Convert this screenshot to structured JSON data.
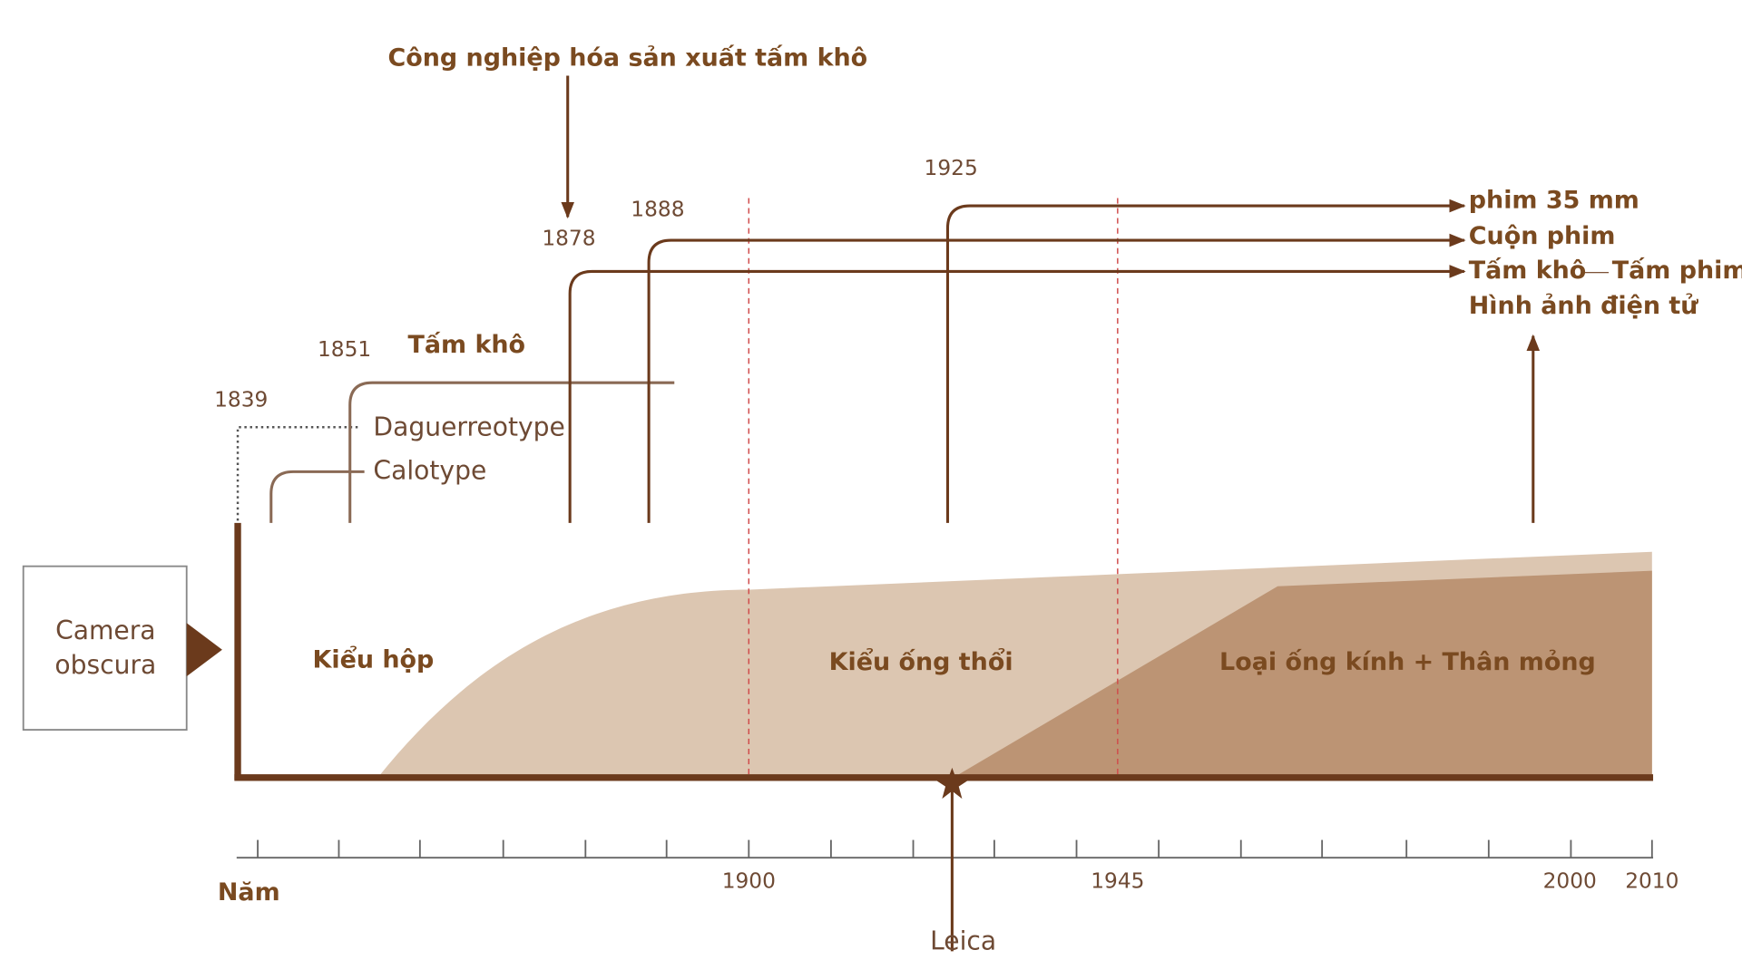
{
  "annotation": "Công nghiệp hóa sản xuất tấm khô",
  "camera_obscura": [
    "Camera",
    "obscura"
  ],
  "branches": {
    "years": [
      "1839",
      "1851",
      "1878",
      "1888",
      "1925"
    ],
    "dry_plate": "Tấm khô",
    "daguerreotype": "Daguerreotype",
    "calotype": "Calotype"
  },
  "outcomes": {
    "film_35mm": "phim 35 mm",
    "roll_film": "Cuộn phim",
    "dry_plate": "Tấm khô",
    "sheet_film": "Tấm phim",
    "digital": "Hình ảnh điện tử"
  },
  "regions": [
    "Kiểu hộp",
    "Kiểu ống thổi",
    "Loại ống kính + Thân mỏng"
  ],
  "axis": {
    "label": "Năm",
    "ticks": [
      "1900",
      "1945",
      "2000",
      "2010"
    ]
  },
  "leica": "Leica"
}
